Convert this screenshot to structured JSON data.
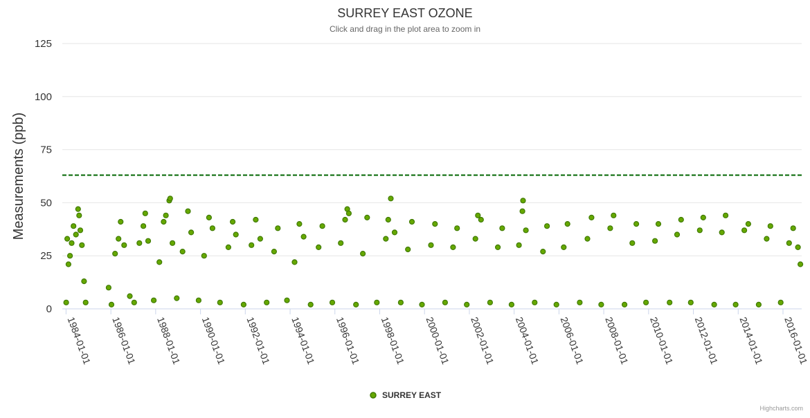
{
  "chart_data": {
    "type": "scatter",
    "title": "SURREY EAST OZONE",
    "subtitle": "Click and drag in the plot area to zoom in",
    "ylabel": "Measurements (ppb)",
    "xlabel": "",
    "ylim": [
      0,
      125
    ],
    "xlim": [
      "1983-11-01",
      "2016-11-01"
    ],
    "y_ticks": [
      0,
      25,
      50,
      75,
      100,
      125
    ],
    "x_ticks": [
      "1984-01-01",
      "1986-01-01",
      "1988-01-01",
      "1990-01-01",
      "1992-01-01",
      "1994-01-01",
      "1996-01-01",
      "1998-01-01",
      "2000-01-01",
      "2002-01-01",
      "2004-01-01",
      "2006-01-01",
      "2008-01-01",
      "2010-01-01",
      "2012-01-01",
      "2014-01-01",
      "2016-01-01"
    ],
    "grid": true,
    "legend_position": "bottom-center",
    "series": [
      {
        "name": "SURREY EAST",
        "color": "#66a800",
        "marker_stroke": "#3f7a00",
        "points": [
          [
            "1984-01-03",
            3
          ],
          [
            "1984-01-20",
            33
          ],
          [
            "1984-02-10",
            21
          ],
          [
            "1984-03-05",
            25
          ],
          [
            "1984-04-01",
            31
          ],
          [
            "1984-05-02",
            39
          ],
          [
            "1984-06-10",
            35
          ],
          [
            "1984-07-15",
            47
          ],
          [
            "1984-08-01",
            44
          ],
          [
            "1984-08-20",
            37
          ],
          [
            "1984-09-15",
            30
          ],
          [
            "1984-10-20",
            13
          ],
          [
            "1984-11-15",
            3
          ],
          [
            "1985-11-25",
            10
          ],
          [
            "1986-01-10",
            2
          ],
          [
            "1986-03-10",
            26
          ],
          [
            "1986-05-05",
            33
          ],
          [
            "1986-06-10",
            41
          ],
          [
            "1986-08-05",
            30
          ],
          [
            "1986-11-05",
            6
          ],
          [
            "1987-01-15",
            3
          ],
          [
            "1987-04-10",
            31
          ],
          [
            "1987-06-15",
            39
          ],
          [
            "1987-07-15",
            45
          ],
          [
            "1987-09-01",
            32
          ],
          [
            "1987-12-01",
            4
          ],
          [
            "1988-03-01",
            22
          ],
          [
            "1988-05-10",
            41
          ],
          [
            "1988-06-15",
            44
          ],
          [
            "1988-08-10",
            51
          ],
          [
            "1988-08-25",
            52
          ],
          [
            "1988-10-01",
            31
          ],
          [
            "1988-12-10",
            5
          ],
          [
            "1989-03-15",
            27
          ],
          [
            "1989-06-10",
            46
          ],
          [
            "1989-08-01",
            36
          ],
          [
            "1989-12-01",
            4
          ],
          [
            "1990-03-01",
            25
          ],
          [
            "1990-05-20",
            43
          ],
          [
            "1990-07-15",
            38
          ],
          [
            "1990-11-15",
            3
          ],
          [
            "1991-04-01",
            29
          ],
          [
            "1991-06-10",
            41
          ],
          [
            "1991-08-01",
            35
          ],
          [
            "1991-12-05",
            2
          ],
          [
            "1992-04-10",
            30
          ],
          [
            "1992-06-20",
            42
          ],
          [
            "1992-09-01",
            33
          ],
          [
            "1992-12-15",
            3
          ],
          [
            "1993-04-15",
            27
          ],
          [
            "1993-06-15",
            38
          ],
          [
            "1993-11-10",
            4
          ],
          [
            "1994-03-15",
            22
          ],
          [
            "1994-06-01",
            40
          ],
          [
            "1994-08-10",
            34
          ],
          [
            "1994-12-01",
            2
          ],
          [
            "1995-04-10",
            29
          ],
          [
            "1995-06-10",
            39
          ],
          [
            "1995-11-20",
            3
          ],
          [
            "1996-04-05",
            31
          ],
          [
            "1996-06-15",
            42
          ],
          [
            "1996-07-20",
            47
          ],
          [
            "1996-08-15",
            45
          ],
          [
            "1996-12-10",
            2
          ],
          [
            "1997-04-01",
            26
          ],
          [
            "1997-06-10",
            43
          ],
          [
            "1997-11-15",
            3
          ],
          [
            "1998-04-10",
            33
          ],
          [
            "1998-05-20",
            42
          ],
          [
            "1998-07-01",
            52
          ],
          [
            "1998-09-01",
            36
          ],
          [
            "1998-12-10",
            3
          ],
          [
            "1999-04-05",
            28
          ],
          [
            "1999-06-10",
            41
          ],
          [
            "1999-11-20",
            2
          ],
          [
            "2000-04-15",
            30
          ],
          [
            "2000-06-20",
            40
          ],
          [
            "2000-12-01",
            3
          ],
          [
            "2001-04-10",
            29
          ],
          [
            "2001-06-15",
            38
          ],
          [
            "2001-11-20",
            2
          ],
          [
            "2002-04-10",
            33
          ],
          [
            "2002-05-20",
            44
          ],
          [
            "2002-07-10",
            42
          ],
          [
            "2002-12-05",
            3
          ],
          [
            "2003-04-10",
            29
          ],
          [
            "2003-06-20",
            38
          ],
          [
            "2003-11-20",
            2
          ],
          [
            "2004-03-20",
            30
          ],
          [
            "2004-05-15",
            46
          ],
          [
            "2004-05-25",
            51
          ],
          [
            "2004-07-10",
            37
          ],
          [
            "2004-12-01",
            3
          ],
          [
            "2005-04-15",
            27
          ],
          [
            "2005-06-20",
            39
          ],
          [
            "2005-11-20",
            2
          ],
          [
            "2006-03-20",
            29
          ],
          [
            "2006-05-20",
            40
          ],
          [
            "2006-12-05",
            3
          ],
          [
            "2007-04-10",
            33
          ],
          [
            "2007-06-15",
            43
          ],
          [
            "2007-11-20",
            2
          ],
          [
            "2008-04-15",
            38
          ],
          [
            "2008-06-10",
            44
          ],
          [
            "2008-12-05",
            2
          ],
          [
            "2009-04-10",
            31
          ],
          [
            "2009-06-15",
            40
          ],
          [
            "2009-11-20",
            3
          ],
          [
            "2010-04-15",
            32
          ],
          [
            "2010-06-10",
            40
          ],
          [
            "2010-12-10",
            3
          ],
          [
            "2011-04-10",
            35
          ],
          [
            "2011-06-15",
            42
          ],
          [
            "2011-11-20",
            3
          ],
          [
            "2012-04-15",
            37
          ],
          [
            "2012-06-10",
            43
          ],
          [
            "2012-12-05",
            2
          ],
          [
            "2013-04-10",
            36
          ],
          [
            "2013-06-10",
            44
          ],
          [
            "2013-11-20",
            2
          ],
          [
            "2014-04-10",
            37
          ],
          [
            "2014-06-15",
            40
          ],
          [
            "2014-12-01",
            2
          ],
          [
            "2015-04-10",
            33
          ],
          [
            "2015-06-10",
            39
          ],
          [
            "2015-11-25",
            3
          ],
          [
            "2016-04-10",
            31
          ],
          [
            "2016-06-15",
            38
          ],
          [
            "2016-09-01",
            29
          ],
          [
            "2016-10-10",
            21
          ]
        ]
      }
    ],
    "plot_lines": [
      {
        "axis": "y",
        "value": 63,
        "color": "#006400",
        "style": "dashed"
      }
    ]
  },
  "credits": "Highcharts.com",
  "colors": {
    "grid": "#e6e6e6",
    "axis": "#ccd6eb",
    "text": "#333333",
    "series": "#66a800",
    "threshold": "#006400"
  }
}
